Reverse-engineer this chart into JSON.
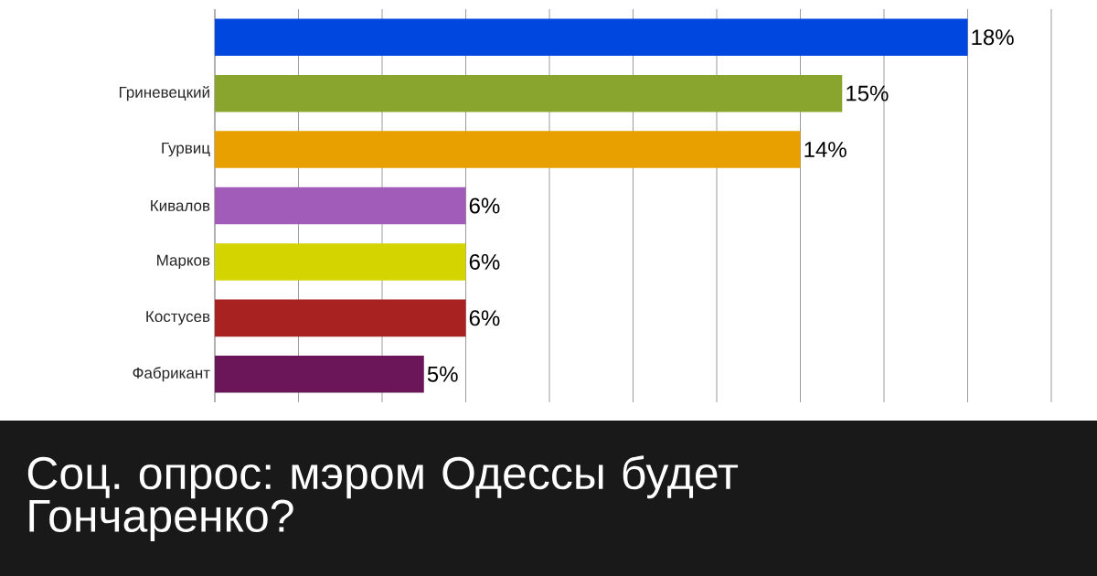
{
  "chart_data": {
    "type": "bar",
    "orientation": "horizontal",
    "title": "Соц. опрос: мэром Одессы будет Гончаренко?",
    "categories": [
      null,
      "Гриневецкий",
      "Гурвиц",
      "Кивалов",
      "Марков",
      "Костусев",
      "Фабрикант"
    ],
    "values": [
      18,
      15,
      14,
      6,
      6,
      6,
      5
    ],
    "value_labels": [
      "18%",
      "15%",
      "14%",
      "6%",
      "6%",
      "6%",
      "5%"
    ],
    "colors": [
      "#0047e0",
      "#8aa52e",
      "#e8a000",
      "#a05cb8",
      "#d4d400",
      "#a82222",
      "#6a1658"
    ],
    "xlim": [
      0,
      20
    ],
    "xticks": [
      {
        "value": 0,
        "label": null
      },
      {
        "value": 2,
        "label": null
      },
      {
        "value": 4,
        "label": null
      },
      {
        "value": 6,
        "label": null
      },
      {
        "value": 8,
        "label": null
      },
      {
        "value": 10,
        "label": null
      },
      {
        "value": 12,
        "label": null
      },
      {
        "value": 14,
        "label": null
      },
      {
        "value": 16,
        "label": null
      },
      {
        "value": 18,
        "label": null
      },
      {
        "value": 20,
        "label": null
      }
    ],
    "grid": "x",
    "tick_labels": "y"
  }
}
